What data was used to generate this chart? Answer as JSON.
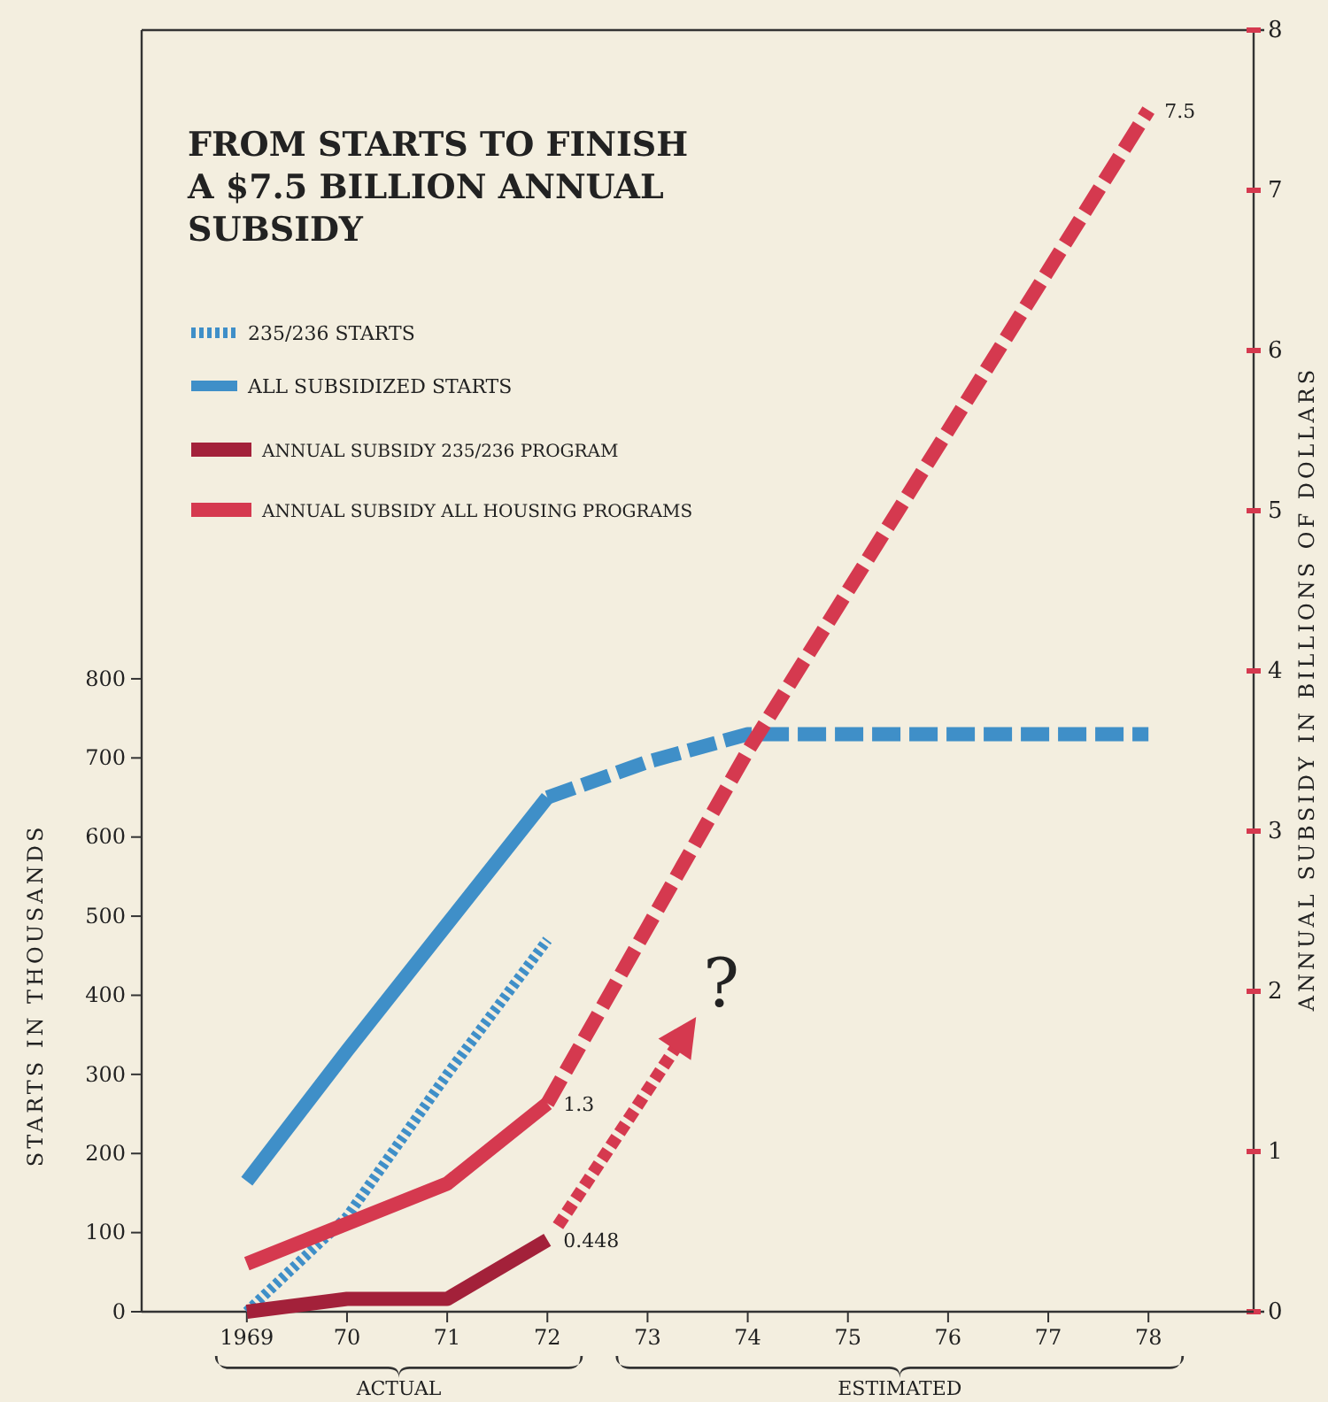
{
  "chart_data": {
    "type": "line",
    "title": "FROM STARTS TO FINISH A $7.5 BILLION ANNUAL SUBSIDY",
    "ylabel": "STARTS IN THOUSANDS",
    "y2label": "ANNUAL SUBSIDY IN BILLIONS OF DOLLARS",
    "categories": [
      "1969",
      "70",
      "71",
      "72",
      "73",
      "74",
      "75",
      "76",
      "77",
      "78"
    ],
    "ylim": [
      0,
      1620
    ],
    "yticks": [
      0,
      100,
      200,
      300,
      400,
      500,
      600,
      700,
      800
    ],
    "y2lim": [
      0,
      8
    ],
    "y2ticks": [
      0,
      1,
      2,
      3,
      4,
      5,
      6,
      7,
      8
    ],
    "series": [
      {
        "name": "235/236 STARTS",
        "color": "#3f8fc8",
        "line_style": "dotted",
        "values": [
          0,
          120,
          300,
          470,
          null,
          null,
          null,
          null,
          null,
          null
        ]
      },
      {
        "name": "ALL SUBSIDIZED STARTS",
        "color": "#3f8fc8",
        "line_style": "solid",
        "values": [
          165,
          330,
          490,
          650,
          null,
          null,
          null,
          null,
          null,
          null
        ]
      },
      {
        "color": "#3f8fc8",
        "line_style": "dashed",
        "values": [
          null,
          null,
          null,
          650,
          695,
          730,
          730,
          730,
          730,
          730
        ]
      },
      {
        "name": "ANNUAL SUBSIDY 235/236 PROGRAM",
        "color": "#a3213a",
        "line_style": "solid",
        "axis": "y2",
        "values": [
          0,
          0.08,
          0.08,
          0.448,
          null,
          null,
          null,
          null,
          null,
          null
        ],
        "value_labels": [
          null,
          null,
          null,
          "0.448",
          null,
          null,
          null,
          null,
          null,
          null
        ]
      },
      {
        "name": "ANNUAL SUBSIDY ALL HOUSING PROGRAMS",
        "color": "#d5394f",
        "line_style": "solid",
        "axis": "y2",
        "values": [
          0.3,
          0.55,
          0.8,
          1.3,
          null,
          null,
          null,
          null,
          null,
          null
        ],
        "value_labels": [
          null,
          null,
          null,
          "1.3",
          null,
          null,
          null,
          null,
          null,
          null
        ]
      },
      {
        "color": "#d5394f",
        "line_style": "dashed",
        "axis": "y2",
        "values": [
          null,
          null,
          null,
          1.3,
          2.4,
          3.5,
          4.5,
          5.5,
          6.5,
          7.5
        ],
        "value_labels": [
          null,
          null,
          null,
          null,
          null,
          null,
          null,
          null,
          null,
          "7.5"
        ]
      }
    ],
    "annotations": [
      "?",
      "ACTUAL",
      "ESTIMATED"
    ],
    "legend": "top left",
    "grid": false,
    "marker": "none"
  }
}
